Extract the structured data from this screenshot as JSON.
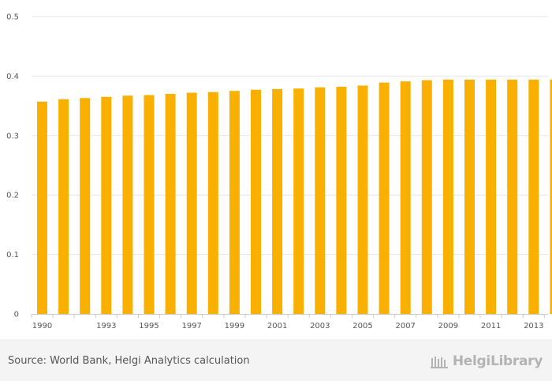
{
  "chart_data": {
    "type": "bar",
    "categories": [
      "1990",
      "1991",
      "1992",
      "1993",
      "1994",
      "1995",
      "1996",
      "1997",
      "1998",
      "1999",
      "2000",
      "2001",
      "2002",
      "2003",
      "2004",
      "2005",
      "2006",
      "2007",
      "2008",
      "2009",
      "2010",
      "2011",
      "2012",
      "2013",
      "2014"
    ],
    "values": [
      0.357,
      0.361,
      0.363,
      0.365,
      0.367,
      0.368,
      0.37,
      0.372,
      0.373,
      0.375,
      0.377,
      0.378,
      0.379,
      0.381,
      0.382,
      0.384,
      0.389,
      0.391,
      0.393,
      0.394,
      0.394,
      0.394,
      0.394,
      0.394,
      0.394
    ],
    "x_tick_labels": [
      "1990",
      "1993",
      "1995",
      "1997",
      "1999",
      "2001",
      "2003",
      "2005",
      "2007",
      "2009",
      "2011",
      "2013"
    ],
    "x_tick_categories": [
      "1990",
      "1993",
      "1995",
      "1997",
      "1999",
      "2001",
      "2003",
      "2005",
      "2007",
      "2009",
      "2011",
      "2013"
    ],
    "y_ticks": [
      "0",
      "0.1",
      "0.2",
      "0.3",
      "0.4",
      "0.5"
    ],
    "ylim": [
      0,
      0.5
    ],
    "title": "",
    "xlabel": "",
    "ylabel": "",
    "grid": true,
    "bar_color": "#f9b000"
  },
  "footer": {
    "source": "Source: World Bank, Helgi Analytics calculation",
    "brand": "HelgiLibrary"
  }
}
